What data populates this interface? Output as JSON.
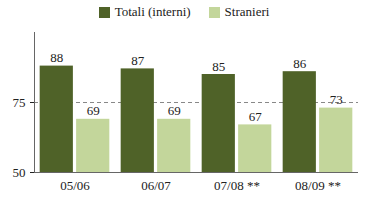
{
  "chart_data": {
    "type": "bar",
    "categories": [
      "05/06",
      "06/07",
      "07/08 **",
      "08/09 **"
    ],
    "series": [
      {
        "name": "Totali (interni)",
        "color": "#4f6228",
        "values": [
          88,
          87,
          85,
          86
        ]
      },
      {
        "name": "Stranieri",
        "color": "#c3d69b",
        "values": [
          69,
          69,
          67,
          73
        ]
      }
    ],
    "ylim": [
      50,
      100
    ],
    "yticks": [
      50,
      75
    ],
    "grid": true,
    "data_labels": true,
    "legend": "top"
  }
}
